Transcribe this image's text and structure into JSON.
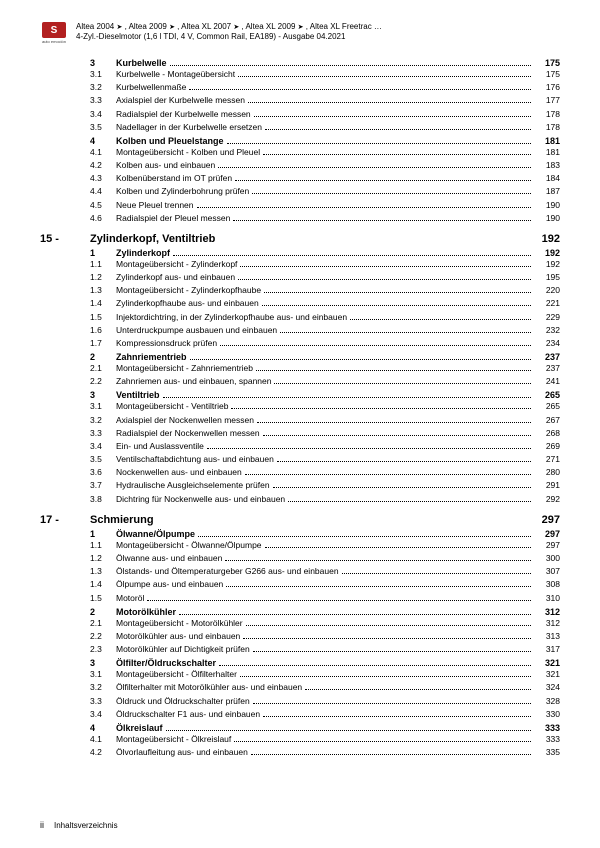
{
  "header": {
    "line1_parts": [
      "Altea 2004",
      "Altea 2009",
      "Altea XL 2007",
      "Altea XL 2009",
      "Altea XL Freetrac …"
    ],
    "line2": "4-Zyl.-Dieselmotor (1,6 l TDI, 4 V, Common Rail, EA189) - Ausgabe 04.2021",
    "logo_letter": "S",
    "logo_sub": "auto emoción"
  },
  "colors": {
    "brand_red": "#b22020",
    "text": "#000000",
    "bg": "#ffffff"
  },
  "continued_sections": [
    {
      "num": "3",
      "title": "Kurbelwelle",
      "page": "175",
      "subs": [
        {
          "num": "3.1",
          "title": "Kurbelwelle - Montageübersicht",
          "page": "175"
        },
        {
          "num": "3.2",
          "title": "Kurbelwellenmaße",
          "page": "176"
        },
        {
          "num": "3.3",
          "title": "Axialspiel der Kurbelwelle messen",
          "page": "177"
        },
        {
          "num": "3.4",
          "title": "Radialspiel der Kurbelwelle messen",
          "page": "178"
        },
        {
          "num": "3.5",
          "title": "Nadellager in der Kurbelwelle ersetzen",
          "page": "178"
        }
      ]
    },
    {
      "num": "4",
      "title": "Kolben und Pleuelstange",
      "page": "181",
      "subs": [
        {
          "num": "4.1",
          "title": "Montageübersicht - Kolben und Pleuel",
          "page": "181"
        },
        {
          "num": "4.2",
          "title": "Kolben aus- und einbauen",
          "page": "183"
        },
        {
          "num": "4.3",
          "title": "Kolbenüberstand im OT prüfen",
          "page": "184"
        },
        {
          "num": "4.4",
          "title": "Kolben und Zylinderbohrung prüfen",
          "page": "187"
        },
        {
          "num": "4.5",
          "title": "Neue Pleuel trennen",
          "page": "190"
        },
        {
          "num": "4.6",
          "title": "Radialspiel der Pleuel messen",
          "page": "190"
        }
      ]
    }
  ],
  "chapters": [
    {
      "num": "15 -",
      "title": "Zylinderkopf, Ventiltrieb",
      "page": "192",
      "sections": [
        {
          "num": "1",
          "title": "Zylinderkopf",
          "page": "192",
          "subs": [
            {
              "num": "1.1",
              "title": "Montageübersicht - Zylinderkopf",
              "page": "192"
            },
            {
              "num": "1.2",
              "title": "Zylinderkopf aus- und einbauen",
              "page": "195"
            },
            {
              "num": "1.3",
              "title": "Montageübersicht - Zylinderkopfhaube",
              "page": "220"
            },
            {
              "num": "1.4",
              "title": "Zylinderkopfhaube aus- und einbauen",
              "page": "221"
            },
            {
              "num": "1.5",
              "title": "Injektordichtring, in der Zylinderkopfhaube aus- und einbauen",
              "page": "229"
            },
            {
              "num": "1.6",
              "title": "Unterdruckpumpe ausbauen und einbauen",
              "page": "232"
            },
            {
              "num": "1.7",
              "title": "Kompressionsdruck prüfen",
              "page": "234"
            }
          ]
        },
        {
          "num": "2",
          "title": "Zahnriementrieb",
          "page": "237",
          "subs": [
            {
              "num": "2.1",
              "title": "Montageübersicht - Zahnriementrieb",
              "page": "237"
            },
            {
              "num": "2.2",
              "title": "Zahnriemen aus- und einbauen, spannen",
              "page": "241"
            }
          ]
        },
        {
          "num": "3",
          "title": "Ventiltrieb",
          "page": "265",
          "subs": [
            {
              "num": "3.1",
              "title": "Montageübersicht - Ventiltrieb",
              "page": "265"
            },
            {
              "num": "3.2",
              "title": "Axialspiel der Nockenwellen messen",
              "page": "267"
            },
            {
              "num": "3.3",
              "title": "Radialspiel der Nockenwellen messen",
              "page": "268"
            },
            {
              "num": "3.4",
              "title": "Ein- und Auslassventile",
              "page": "269"
            },
            {
              "num": "3.5",
              "title": "Ventilschaftabdichtung aus- und einbauen",
              "page": "271"
            },
            {
              "num": "3.6",
              "title": "Nockenwellen aus- und einbauen",
              "page": "280"
            },
            {
              "num": "3.7",
              "title": "Hydraulische Ausgleichselemente prüfen",
              "page": "291"
            },
            {
              "num": "3.8",
              "title": "Dichtring für Nockenwelle aus- und einbauen",
              "page": "292"
            }
          ]
        }
      ]
    },
    {
      "num": "17 -",
      "title": "Schmierung",
      "page": "297",
      "sections": [
        {
          "num": "1",
          "title": "Ölwanne/Ölpumpe",
          "page": "297",
          "subs": [
            {
              "num": "1.1",
              "title": "Montageübersicht - Ölwanne/Ölpumpe",
              "page": "297"
            },
            {
              "num": "1.2",
              "title": "Ölwanne aus- und einbauen",
              "page": "300"
            },
            {
              "num": "1.3",
              "title": "Ölstands- und Öltemperaturgeber G266 aus- und einbauen",
              "page": "307"
            },
            {
              "num": "1.4",
              "title": "Ölpumpe aus- und einbauen",
              "page": "308"
            },
            {
              "num": "1.5",
              "title": "Motoröl",
              "page": "310"
            }
          ]
        },
        {
          "num": "2",
          "title": "Motorölkühler",
          "page": "312",
          "subs": [
            {
              "num": "2.1",
              "title": "Montageübersicht - Motorölkühler",
              "page": "312"
            },
            {
              "num": "2.2",
              "title": "Motorölkühler aus- und einbauen",
              "page": "313"
            },
            {
              "num": "2.3",
              "title": "Motorölkühler auf Dichtigkeit prüfen",
              "page": "317"
            }
          ]
        },
        {
          "num": "3",
          "title": "Ölfilter/Öldruckschalter",
          "page": "321",
          "subs": [
            {
              "num": "3.1",
              "title": "Montageübersicht - Ölfilterhalter",
              "page": "321"
            },
            {
              "num": "3.2",
              "title": "Ölfilterhalter mit Motorölkühler aus- und einbauen",
              "page": "324"
            },
            {
              "num": "3.3",
              "title": "Öldruck und Öldruckschalter prüfen",
              "page": "328"
            },
            {
              "num": "3.4",
              "title": "Öldruckschalter F1 aus- und einbauen",
              "page": "330"
            }
          ]
        },
        {
          "num": "4",
          "title": "Ölkreislauf",
          "page": "333",
          "subs": [
            {
              "num": "4.1",
              "title": "Montageübersicht - Ölkreislauf",
              "page": "333"
            },
            {
              "num": "4.2",
              "title": "Ölvorlaufleitung aus- und einbauen",
              "page": "335"
            }
          ]
        }
      ]
    }
  ],
  "footer": {
    "page": "ii",
    "label": "Inhaltsverzeichnis"
  }
}
